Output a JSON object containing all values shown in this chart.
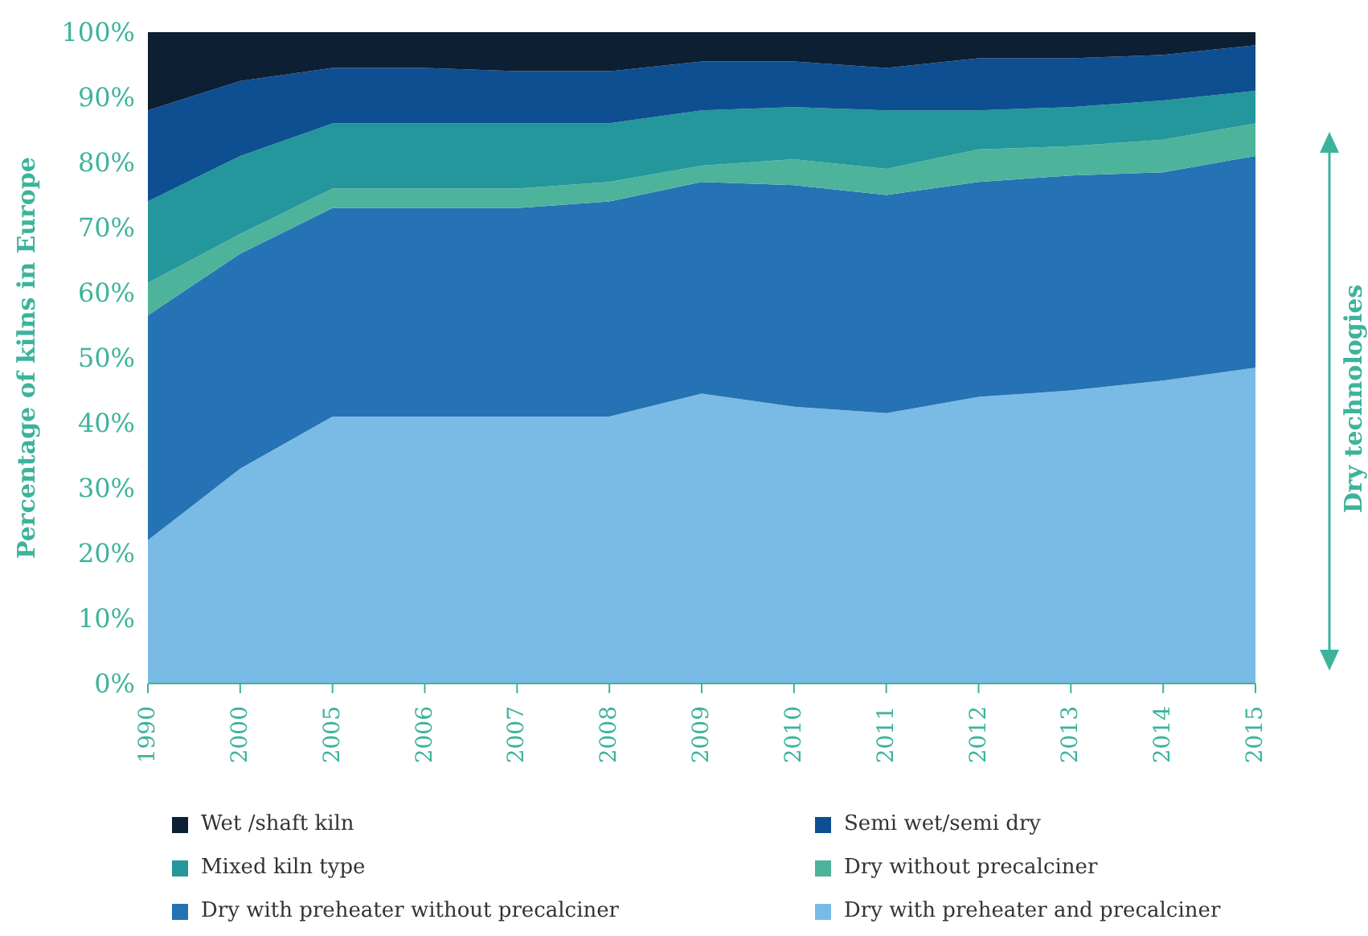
{
  "chart_data": {
    "type": "area",
    "stacked": true,
    "ylabel": "Percentage of kilns in Europe",
    "categories": [
      "1990",
      "2000",
      "2005",
      "2006",
      "2007",
      "2008",
      "2009",
      "2010",
      "2011",
      "2012",
      "2013",
      "2014",
      "2015"
    ],
    "series": [
      {
        "name": "Dry with preheater and precalciner",
        "color": "#7abbe6",
        "values": [
          22,
          33,
          41,
          41,
          41,
          41,
          44.5,
          42.5,
          41.5,
          44,
          45,
          46.5,
          48.5
        ]
      },
      {
        "name": "Dry with preheater without precalciner",
        "color": "#2572b4",
        "values": [
          34.5,
          33,
          32,
          32,
          32,
          33,
          32.5,
          34,
          33.5,
          33,
          33,
          32,
          32.5
        ]
      },
      {
        "name": "Dry without precalciner",
        "color": "#4db39b",
        "values": [
          5,
          3,
          3,
          3,
          3,
          3,
          2.5,
          4,
          4,
          5,
          4.5,
          5,
          5
        ]
      },
      {
        "name": "Mixed kiln type",
        "color": "#23979c",
        "values": [
          12.5,
          12,
          10,
          10,
          10,
          9,
          8.5,
          8,
          9,
          6,
          6,
          6,
          5
        ]
      },
      {
        "name": "Semi wet/semi dry",
        "color": "#0e4f92",
        "values": [
          14,
          11.5,
          8.5,
          8.5,
          8,
          8,
          7.5,
          7,
          6.5,
          8,
          7.5,
          7,
          7
        ]
      },
      {
        "name": "Wet /shaft kiln",
        "color": "#0c1f33",
        "values": [
          12,
          7.5,
          5.5,
          5.5,
          6,
          6,
          4.5,
          4.5,
          5.5,
          4,
          4,
          3.5,
          2
        ]
      }
    ],
    "ylim": [
      0,
      100
    ],
    "yticks": [
      {
        "value": 0,
        "label": "0%"
      },
      {
        "value": 10,
        "label": "10%"
      },
      {
        "value": 20,
        "label": "20%"
      },
      {
        "value": 30,
        "label": "30%"
      },
      {
        "value": 40,
        "label": "40%"
      },
      {
        "value": 50,
        "label": "50%"
      },
      {
        "value": 60,
        "label": "60%"
      },
      {
        "value": 70,
        "label": "70%"
      },
      {
        "value": 80,
        "label": "80%"
      },
      {
        "value": 90,
        "label": "90%"
      },
      {
        "value": 100,
        "label": "100%"
      }
    ],
    "legend": "bottom",
    "annotations": [
      "Dry technologies"
    ]
  }
}
